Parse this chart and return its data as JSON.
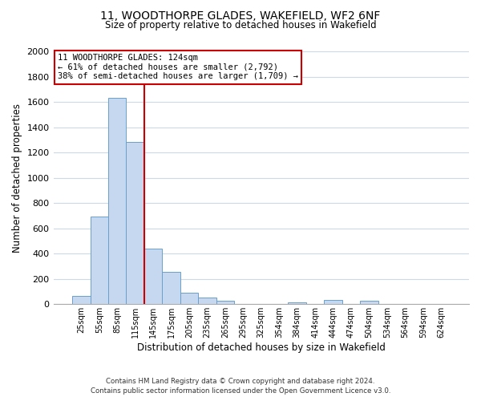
{
  "title": "11, WOODTHORPE GLADES, WAKEFIELD, WF2 6NF",
  "subtitle": "Size of property relative to detached houses in Wakefield",
  "xlabel": "Distribution of detached houses by size in Wakefield",
  "ylabel": "Number of detached properties",
  "bar_labels": [
    "25sqm",
    "55sqm",
    "85sqm",
    "115sqm",
    "145sqm",
    "175sqm",
    "205sqm",
    "235sqm",
    "265sqm",
    "295sqm",
    "325sqm",
    "354sqm",
    "384sqm",
    "414sqm",
    "444sqm",
    "474sqm",
    "504sqm",
    "534sqm",
    "564sqm",
    "594sqm",
    "624sqm"
  ],
  "bar_values": [
    65,
    695,
    1635,
    1285,
    440,
    255,
    90,
    50,
    30,
    0,
    0,
    0,
    15,
    0,
    35,
    0,
    30,
    0,
    0,
    0,
    0
  ],
  "bar_color": "#c5d8ef",
  "bar_edgecolor": "#6aa0cc",
  "ylim": [
    0,
    2000
  ],
  "yticks": [
    0,
    200,
    400,
    600,
    800,
    1000,
    1200,
    1400,
    1600,
    1800,
    2000
  ],
  "property_line_color": "#cc0000",
  "annotation_title": "11 WOODTHORPE GLADES: 124sqm",
  "annotation_line1": "← 61% of detached houses are smaller (2,792)",
  "annotation_line2": "38% of semi-detached houses are larger (1,709) →",
  "annotation_box_edgecolor": "#cc0000",
  "footnote1": "Contains HM Land Registry data © Crown copyright and database right 2024.",
  "footnote2": "Contains public sector information licensed under the Open Government Licence v3.0.",
  "bg_color": "#ffffff",
  "grid_color": "#ccd9e8"
}
